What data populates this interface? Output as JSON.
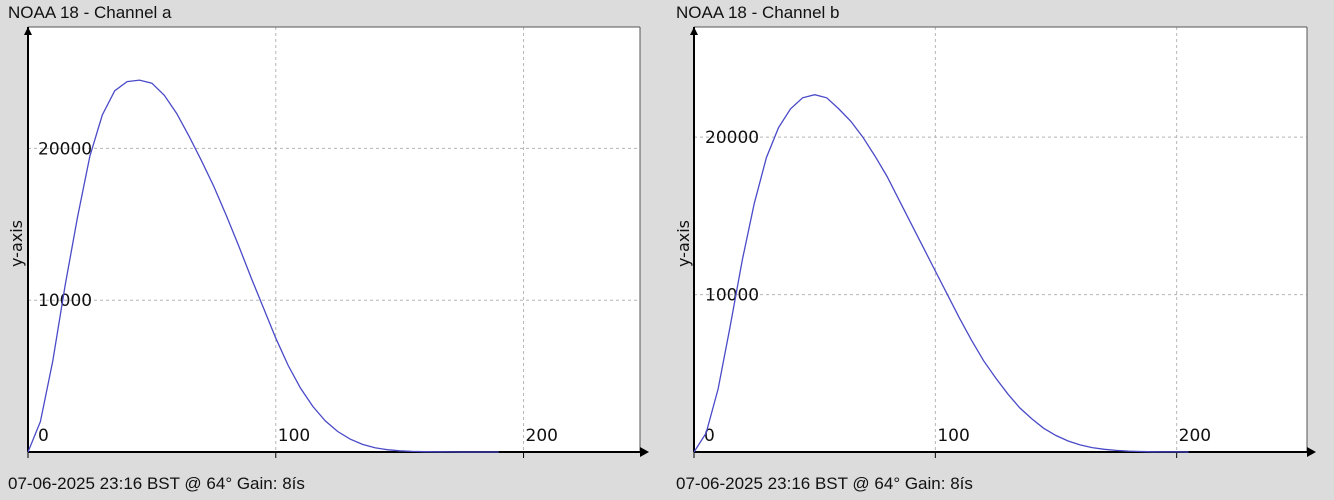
{
  "charts": [
    {
      "title": "NOAA 18 - Channel a",
      "footer": "07-06-2025 23:16 BST @ 64° Gain: 8ís"
    },
    {
      "title": "NOAA 18 - Channel b",
      "footer": "07-06-2025 23:16 BST @ 64° Gain: 8ís"
    }
  ],
  "chart_data": [
    {
      "type": "line",
      "title": "NOAA 18 - Channel a",
      "xlabel": "",
      "ylabel": "y-axis",
      "xlim": [
        0,
        247
      ],
      "ylim": [
        0,
        28000
      ],
      "x_ticks": [
        0,
        100,
        200
      ],
      "y_ticks": [
        10000,
        20000
      ],
      "grid": true,
      "line_color": "#4a4ac8",
      "series": [
        {
          "x": [
            0,
            5,
            10,
            15,
            20,
            25,
            30,
            35,
            40,
            45,
            50,
            55,
            60,
            65,
            70,
            75,
            80,
            85,
            90,
            95,
            100,
            105,
            110,
            115,
            120,
            125,
            130,
            135,
            140,
            145,
            150,
            155,
            160,
            165,
            170,
            175,
            180,
            185,
            190
          ],
          "values": [
            0,
            2000,
            6000,
            11000,
            15500,
            19500,
            22200,
            23800,
            24400,
            24500,
            24300,
            23500,
            22300,
            20800,
            19200,
            17500,
            15600,
            13600,
            11500,
            9500,
            7500,
            5700,
            4200,
            3000,
            2050,
            1350,
            850,
            500,
            280,
            150,
            80,
            40,
            20,
            10,
            5,
            2,
            1,
            0,
            0
          ]
        }
      ]
    },
    {
      "type": "line",
      "title": "NOAA 18 - Channel b",
      "xlabel": "",
      "ylabel": "y-axis",
      "xlim": [
        0,
        254
      ],
      "ylim": [
        0,
        27000
      ],
      "x_ticks": [
        0,
        100,
        200
      ],
      "y_ticks": [
        10000,
        20000
      ],
      "grid": true,
      "line_color": "#4a4ac8",
      "series": [
        {
          "x": [
            0,
            5,
            10,
            15,
            20,
            25,
            30,
            35,
            40,
            45,
            50,
            55,
            60,
            65,
            70,
            75,
            80,
            85,
            90,
            95,
            100,
            105,
            110,
            115,
            120,
            125,
            130,
            135,
            140,
            145,
            150,
            155,
            160,
            165,
            170,
            175,
            180,
            185,
            190,
            195,
            200,
            205
          ],
          "values": [
            0,
            1200,
            4000,
            8000,
            12200,
            15800,
            18700,
            20600,
            21800,
            22500,
            22700,
            22500,
            21800,
            21000,
            20000,
            18800,
            17500,
            16000,
            14500,
            13000,
            11500,
            10000,
            8500,
            7100,
            5800,
            4700,
            3700,
            2800,
            2100,
            1500,
            1050,
            700,
            450,
            280,
            170,
            100,
            55,
            30,
            15,
            8,
            4,
            0
          ]
        }
      ]
    }
  ]
}
